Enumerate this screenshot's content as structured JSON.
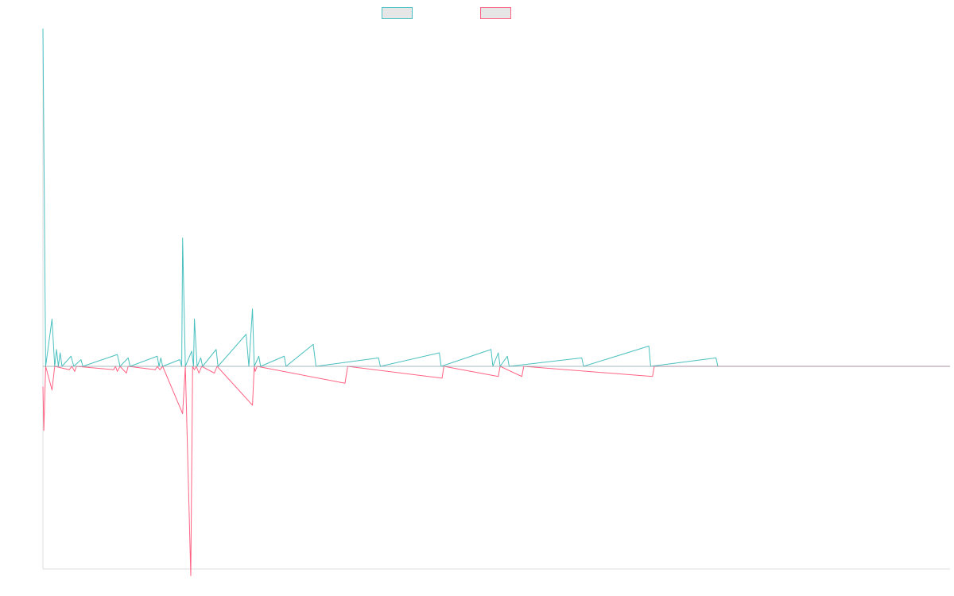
{
  "chart_data": {
    "type": "line",
    "title": "",
    "xlabel": "",
    "ylabel": "",
    "xlim": [
      0,
      1000
    ],
    "ylim": [
      -60,
      100
    ],
    "legend": "top-center",
    "grid": false,
    "colors": {
      "series_a": "#4bc0c0",
      "series_b": "#ff6384",
      "axis": "#dddddd"
    },
    "series": [
      {
        "color": "#4bc0c0",
        "points": [
          [
            0,
            100
          ],
          [
            3,
            0
          ],
          [
            10,
            14
          ],
          [
            13,
            0
          ],
          [
            15,
            5
          ],
          [
            17,
            0
          ],
          [
            19,
            4
          ],
          [
            21,
            0
          ],
          [
            31,
            3
          ],
          [
            34,
            0
          ],
          [
            42,
            2
          ],
          [
            44,
            0
          ],
          [
            82,
            3.5
          ],
          [
            85,
            0
          ],
          [
            94,
            2.5
          ],
          [
            96,
            0
          ],
          [
            126,
            3
          ],
          [
            128,
            0
          ],
          [
            130,
            2.5
          ],
          [
            132,
            0
          ],
          [
            151,
            2
          ],
          [
            153,
            0
          ],
          [
            154,
            38
          ],
          [
            157,
            0
          ],
          [
            164,
            4.5
          ],
          [
            166,
            0
          ],
          [
            167,
            14
          ],
          [
            170,
            0
          ],
          [
            174,
            2.5
          ],
          [
            176,
            0
          ],
          [
            191,
            5
          ],
          [
            193,
            0
          ],
          [
            224,
            9.5
          ],
          [
            227,
            0
          ],
          [
            231,
            17
          ],
          [
            233,
            0
          ],
          [
            238,
            3
          ],
          [
            240,
            0
          ],
          [
            266,
            3
          ],
          [
            268,
            0
          ],
          [
            298,
            6.5
          ],
          [
            301,
            0
          ],
          [
            370,
            2.5
          ],
          [
            372,
            0
          ],
          [
            437,
            4
          ],
          [
            439,
            0
          ],
          [
            494,
            5
          ],
          [
            496,
            0
          ],
          [
            502,
            4
          ],
          [
            504,
            0
          ],
          [
            512,
            3
          ],
          [
            514,
            0
          ],
          [
            594,
            2.5
          ],
          [
            596,
            0
          ],
          [
            668,
            6
          ],
          [
            670,
            0
          ],
          [
            742,
            2.5
          ],
          [
            744,
            0
          ]
        ]
      },
      {
        "color": "#ff6384",
        "points": [
          [
            0,
            -6
          ],
          [
            1,
            -19
          ],
          [
            3,
            0
          ],
          [
            10,
            -7
          ],
          [
            13,
            0
          ],
          [
            29,
            -1
          ],
          [
            32,
            0
          ],
          [
            35,
            -1.5
          ],
          [
            37,
            0
          ],
          [
            78,
            -1
          ],
          [
            80,
            0
          ],
          [
            82,
            -1.5
          ],
          [
            85,
            0
          ],
          [
            92,
            -2
          ],
          [
            94,
            0
          ],
          [
            124,
            -1
          ],
          [
            126,
            0
          ],
          [
            129,
            -1
          ],
          [
            132,
            0
          ],
          [
            154,
            -14
          ],
          [
            157,
            0
          ],
          [
            163,
            -62
          ],
          [
            165,
            0
          ],
          [
            167,
            -1
          ],
          [
            169,
            0
          ],
          [
            172,
            -2
          ],
          [
            175,
            0
          ],
          [
            189,
            -2
          ],
          [
            192,
            0
          ],
          [
            231,
            -11.5
          ],
          [
            233,
            0
          ],
          [
            234,
            -1.5
          ],
          [
            236,
            0
          ],
          [
            333,
            -5
          ],
          [
            336,
            0
          ],
          [
            440,
            -3.5
          ],
          [
            442,
            0
          ],
          [
            502,
            -3
          ],
          [
            504,
            0
          ],
          [
            528,
            -3
          ],
          [
            530,
            0
          ],
          [
            672,
            -3
          ],
          [
            674,
            0
          ]
        ]
      }
    ]
  }
}
